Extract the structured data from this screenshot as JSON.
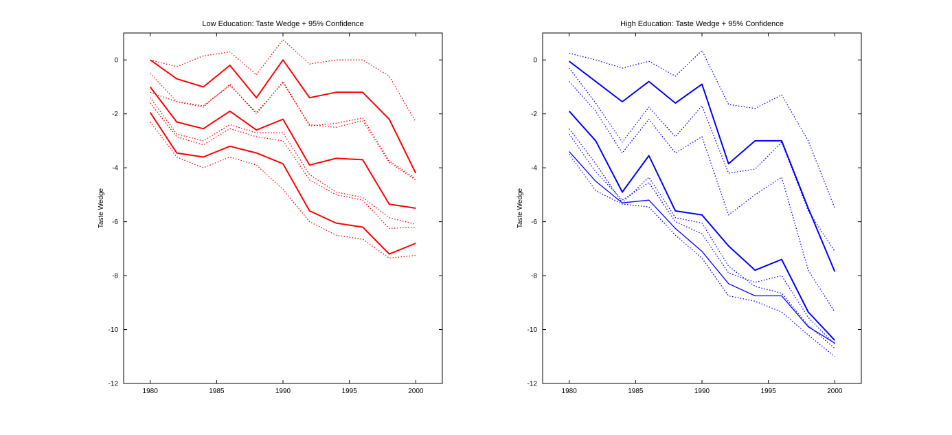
{
  "chart_data": [
    {
      "type": "line",
      "title": "Low Education: Taste Wedge + 95% Confidence",
      "ylabel": "Taste Wedge",
      "xlabel": "",
      "xlim": [
        1978,
        2002
      ],
      "ylim": [
        -12,
        1
      ],
      "xticks": [
        1980,
        1985,
        1990,
        1995,
        2000
      ],
      "yticks": [
        -12,
        -10,
        -8,
        -6,
        -4,
        -2,
        0
      ],
      "grid": false,
      "color": "#ff0000",
      "x": [
        1980,
        1982,
        1984,
        1986,
        1988,
        1990,
        1992,
        1994,
        1996,
        1998,
        2000
      ],
      "series": [
        {
          "style": "solid",
          "width": 2,
          "values": [
            0,
            -0.7,
            -1.0,
            -0.2,
            -1.4,
            0,
            -1.4,
            -1.2,
            -1.2,
            -2.2,
            -4.2
          ]
        },
        {
          "style": "dotted",
          "width": 1.3,
          "values": [
            0,
            -0.25,
            0.15,
            0.3,
            -0.55,
            0.75,
            -0.15,
            0,
            0,
            -0.6,
            -2.3
          ]
        },
        {
          "style": "dotted",
          "width": 1.3,
          "values": [
            -0.5,
            -1.55,
            -1.7,
            -0.95,
            -1.95,
            -0.85,
            -2.4,
            -2.5,
            -2.25,
            -3.8,
            -4.45
          ]
        },
        {
          "style": "solid",
          "width": 2,
          "values": [
            -1.0,
            -2.3,
            -2.55,
            -1.9,
            -2.6,
            -2.2,
            -3.9,
            -3.65,
            -3.7,
            -5.35,
            -5.5
          ]
        },
        {
          "style": "dotted",
          "width": 1.3,
          "values": [
            -1.2,
            -1.55,
            -1.75,
            -0.9,
            -2.0,
            -0.8,
            -2.45,
            -2.35,
            -2.15,
            -3.75,
            -4.4
          ]
        },
        {
          "style": "dotted",
          "width": 1.3,
          "values": [
            -1.4,
            -2.75,
            -3.0,
            -2.4,
            -2.7,
            -2.7,
            -4.25,
            -4.9,
            -5.1,
            -5.85,
            -6.1
          ]
        },
        {
          "style": "dotted",
          "width": 1.3,
          "values": [
            -1.6,
            -2.85,
            -3.15,
            -2.55,
            -2.85,
            -3.0,
            -4.45,
            -5.0,
            -5.2,
            -6.25,
            -6.2
          ]
        },
        {
          "style": "solid",
          "width": 2,
          "values": [
            -1.95,
            -3.45,
            -3.6,
            -3.2,
            -3.45,
            -3.85,
            -5.6,
            -6.05,
            -6.2,
            -7.2,
            -6.8
          ]
        },
        {
          "style": "dotted",
          "width": 1.3,
          "values": [
            -2.3,
            -3.6,
            -4.0,
            -3.6,
            -3.9,
            -4.8,
            -6.0,
            -6.5,
            -6.65,
            -7.35,
            -7.25
          ]
        }
      ]
    },
    {
      "type": "line",
      "title": "High Education: Taste Wedge + 95% Confidence",
      "ylabel": "Taste Wedge",
      "xlabel": "",
      "xlim": [
        1978,
        2002
      ],
      "ylim": [
        -12,
        1
      ],
      "xticks": [
        1980,
        1985,
        1990,
        1995,
        2000
      ],
      "yticks": [
        -12,
        -10,
        -8,
        -6,
        -4,
        -2,
        0
      ],
      "grid": false,
      "color": "#0000ff",
      "x": [
        1980,
        1982,
        1984,
        1986,
        1988,
        1990,
        1992,
        1994,
        1996,
        1998,
        2000
      ],
      "series": [
        {
          "style": "solid",
          "width": 2,
          "values": [
            -0.05,
            -0.8,
            -1.55,
            -0.8,
            -1.6,
            -0.9,
            -3.85,
            -3.0,
            -3.0,
            -5.5,
            -7.85
          ]
        },
        {
          "style": "dotted",
          "width": 1.3,
          "values": [
            0.25,
            0,
            -0.3,
            -0.05,
            -0.6,
            0.35,
            -1.65,
            -1.8,
            -1.3,
            -3.0,
            -5.5
          ]
        },
        {
          "style": "dotted",
          "width": 1.3,
          "values": [
            -0.8,
            -1.9,
            -3.45,
            -2.2,
            -3.45,
            -2.85,
            -5.75,
            -5.0,
            -4.35,
            -7.8,
            -9.35
          ]
        },
        {
          "style": "solid",
          "width": 2,
          "values": [
            -1.9,
            -3.0,
            -4.9,
            -3.55,
            -5.6,
            -5.75,
            -6.9,
            -7.8,
            -7.4,
            -9.35,
            -10.4
          ]
        },
        {
          "style": "dotted",
          "width": 1.3,
          "values": [
            -0.3,
            -1.6,
            -3.05,
            -1.75,
            -2.85,
            -1.7,
            -4.2,
            -4.05,
            -3.05,
            -5.6,
            -7.1
          ]
        },
        {
          "style": "dotted",
          "width": 1.3,
          "values": [
            -2.55,
            -3.85,
            -5.3,
            -4.35,
            -5.85,
            -6.05,
            -7.65,
            -8.4,
            -8.65,
            -9.85,
            -10.7
          ]
        },
        {
          "style": "dotted",
          "width": 1.3,
          "values": [
            -2.75,
            -4.15,
            -5.2,
            -4.55,
            -6.0,
            -6.45,
            -7.9,
            -8.25,
            -8.0,
            -9.55,
            -10.55
          ]
        },
        {
          "style": "solid",
          "width": 1.3,
          "values": [
            -3.4,
            -4.5,
            -5.3,
            -5.2,
            -6.25,
            -7.1,
            -8.3,
            -8.75,
            -8.75,
            -9.9,
            -10.5
          ]
        },
        {
          "style": "dotted",
          "width": 1.3,
          "values": [
            -3.5,
            -4.85,
            -5.35,
            -5.45,
            -6.5,
            -7.35,
            -8.75,
            -8.95,
            -9.35,
            -10.2,
            -11.0
          ]
        }
      ]
    }
  ]
}
